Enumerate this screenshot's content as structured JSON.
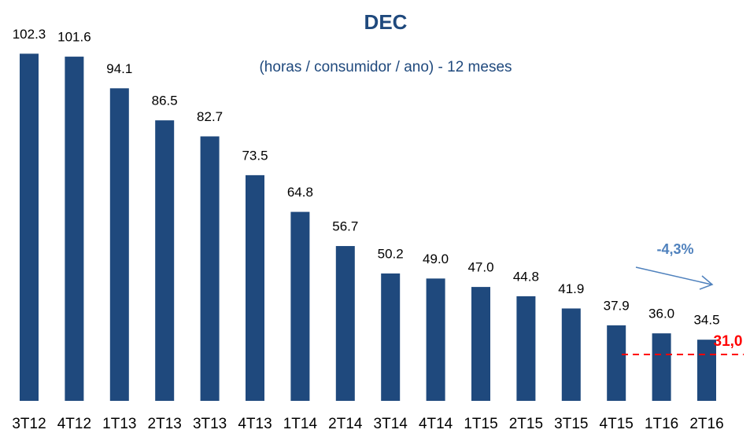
{
  "chart_data": {
    "type": "bar",
    "title": "DEC",
    "subtitle": "(horas / consumidor / ano) - 12 meses",
    "categories": [
      "3T12",
      "4T12",
      "1T13",
      "2T13",
      "3T13",
      "4T13",
      "1T14",
      "2T14",
      "3T14",
      "4T14",
      "1T15",
      "2T15",
      "3T15",
      "4T15",
      "1T16",
      "2T16"
    ],
    "values": [
      102.3,
      101.6,
      94.1,
      86.5,
      82.7,
      73.5,
      64.8,
      56.7,
      50.2,
      49.0,
      47.0,
      44.8,
      41.9,
      37.9,
      36.0,
      34.5
    ],
    "value_labels": [
      "102.3",
      "101.6",
      "94.1",
      "86.5",
      "82.7",
      "73.5",
      "64.8",
      "56.7",
      "50.2",
      "49.0",
      "47.0",
      "44.8",
      "41.9",
      "37.9",
      "36.0",
      "34.5"
    ],
    "color": "#1f497d",
    "ylim": [
      20,
      110
    ],
    "target": {
      "value": 31,
      "label": "31,0",
      "color": "#ff0000"
    },
    "annotation": {
      "text": "-4,3%",
      "color": "#4f81bd"
    }
  }
}
